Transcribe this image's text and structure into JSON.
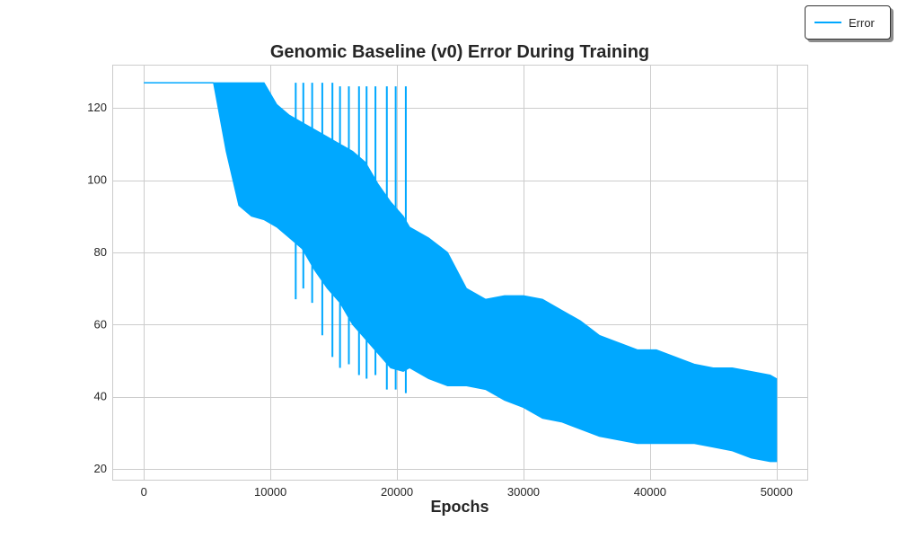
{
  "chart_data": {
    "type": "line",
    "title": "Genomic Baseline (v0) Error During Training",
    "xlabel": "Epochs",
    "ylabel": "",
    "xlim": [
      -2500,
      52500
    ],
    "ylim": [
      17,
      132
    ],
    "xticks": [
      0,
      10000,
      20000,
      30000,
      40000,
      50000
    ],
    "yticks": [
      20,
      40,
      60,
      80,
      100,
      120
    ],
    "grid": true,
    "legend_position": "top-right (outside axes)",
    "series": [
      {
        "name": "Error",
        "color": "#00a8ff",
        "points": [
          [
            0,
            127
          ],
          [
            5500,
            127
          ]
        ],
        "oscillation_band": {
          "x": [
            5500,
            6500,
            7500,
            8500,
            9500,
            10500,
            11500,
            12500,
            13500,
            14500,
            15500,
            16500,
            17500,
            18500,
            19500,
            20500,
            21000,
            22500,
            24000,
            25500,
            27000,
            28500,
            30000,
            31500,
            33000,
            34500,
            36000,
            37500,
            39000,
            40500,
            42000,
            43500,
            45000,
            46500,
            48000,
            49500,
            50000
          ],
          "upper": [
            127,
            127,
            127,
            127,
            127,
            121,
            118,
            116,
            114,
            112,
            110,
            108,
            105,
            99,
            94,
            90,
            87,
            84,
            80,
            70,
            67,
            68,
            68,
            67,
            64,
            61,
            57,
            55,
            53,
            53,
            51,
            49,
            48,
            48,
            47,
            46,
            45
          ],
          "lower": [
            127,
            108,
            93,
            90,
            89,
            87,
            84,
            81,
            75,
            70,
            66,
            60,
            56,
            52,
            48,
            47,
            48,
            45,
            43,
            43,
            42,
            39,
            37,
            34,
            33,
            31,
            29,
            28,
            27,
            27,
            27,
            27,
            26,
            25,
            23,
            22,
            22
          ]
        },
        "spikes": [
          {
            "x": 12000,
            "low": 67,
            "high": 127
          },
          {
            "x": 12600,
            "low": 70,
            "high": 127
          },
          {
            "x": 13300,
            "low": 66,
            "high": 127
          },
          {
            "x": 14100,
            "low": 57,
            "high": 127
          },
          {
            "x": 14900,
            "low": 51,
            "high": 127
          },
          {
            "x": 15500,
            "low": 48,
            "high": 126
          },
          {
            "x": 16200,
            "low": 49,
            "high": 126
          },
          {
            "x": 17000,
            "low": 46,
            "high": 126
          },
          {
            "x": 17600,
            "low": 45,
            "high": 126
          },
          {
            "x": 18300,
            "low": 46,
            "high": 126
          },
          {
            "x": 19200,
            "low": 42,
            "high": 126
          },
          {
            "x": 19900,
            "low": 42,
            "high": 126
          },
          {
            "x": 20700,
            "low": 41,
            "high": 126
          }
        ]
      }
    ]
  }
}
